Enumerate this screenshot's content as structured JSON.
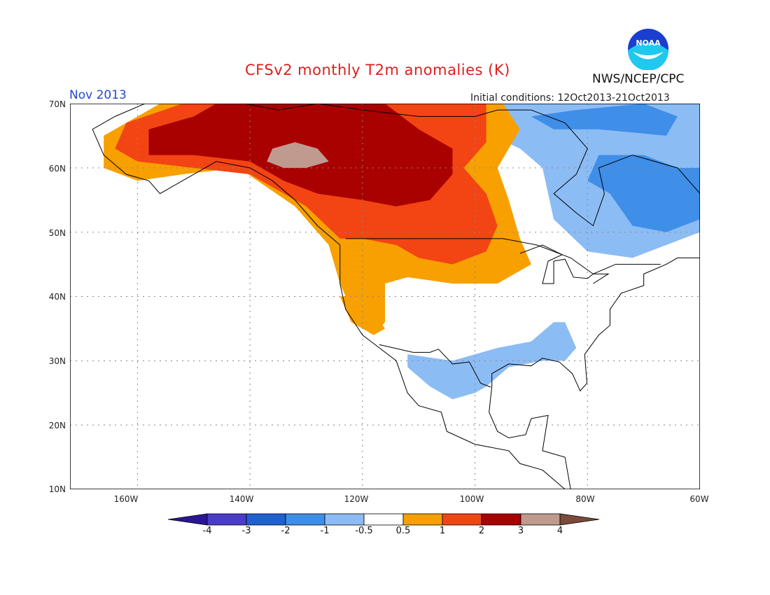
{
  "title": "CFSv2 monthly T2m anomalies (K)",
  "valid_month": "Nov 2013",
  "initial_conditions": "Initial conditions: 12Oct2013-21Oct2013",
  "agency": "NWS/NCEP/CPC",
  "logo_text": "NOAA",
  "map": {
    "lon_range": [
      -172,
      -60
    ],
    "lat_range": [
      10,
      70
    ],
    "lat_ticks": [
      "70N",
      "60N",
      "50N",
      "40N",
      "30N",
      "20N",
      "10N"
    ],
    "lon_ticks": [
      "160W",
      "140W",
      "120W",
      "100W",
      "80W",
      "60W"
    ],
    "grid": true
  },
  "colorbar": {
    "labels": [
      "-4",
      "-3",
      "-2",
      "-1",
      "-0.5",
      "0.5",
      "1",
      "2",
      "3",
      "4"
    ],
    "colors": [
      "#2a1596",
      "#4a3cc8",
      "#1f5fd0",
      "#3f8ee8",
      "#8cbcf4",
      "#ffffff",
      "#f7a000",
      "#f34413",
      "#a90000",
      "#c09a8f",
      "#7a4a3a"
    ]
  },
  "anomaly_colors": {
    "lt_-4": "#2a1596",
    "-4_-3": "#4a3cc8",
    "-3_-2": "#1f5fd0",
    "-2_-1": "#3f8ee8",
    "-1_-0.5": "#8cbcf4",
    "0.5_1": "#f7a000",
    "1_2": "#f34413",
    "2_3": "#a90000",
    "3_4": "#c09a8f"
  }
}
